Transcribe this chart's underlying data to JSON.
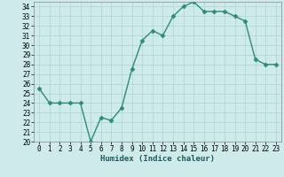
{
  "title": "",
  "xlabel": "Humidex (Indice chaleur)",
  "x": [
    0,
    1,
    2,
    3,
    4,
    5,
    6,
    7,
    8,
    9,
    10,
    11,
    12,
    13,
    14,
    15,
    16,
    17,
    18,
    19,
    20,
    21,
    22,
    23
  ],
  "y": [
    25.5,
    24.0,
    24.0,
    24.0,
    24.0,
    20.0,
    22.5,
    22.2,
    23.5,
    27.5,
    30.5,
    31.5,
    31.0,
    33.0,
    34.0,
    34.5,
    33.5,
    33.5,
    33.5,
    33.0,
    32.5,
    28.5,
    28.0,
    28.0
  ],
  "line_color": "#2e8b7a",
  "marker": "D",
  "marker_size": 2.5,
  "bg_color": "#ceeaea",
  "grid_color": "#b0d8d8",
  "ylim": [
    20,
    34.5
  ],
  "xlim": [
    -0.5,
    23.5
  ],
  "yticks": [
    20,
    21,
    22,
    23,
    24,
    25,
    26,
    27,
    28,
    29,
    30,
    31,
    32,
    33,
    34
  ],
  "xticks": [
    0,
    1,
    2,
    3,
    4,
    5,
    6,
    7,
    8,
    9,
    10,
    11,
    12,
    13,
    14,
    15,
    16,
    17,
    18,
    19,
    20,
    21,
    22,
    23
  ],
  "tick_fontsize": 5.5,
  "xlabel_fontsize": 6.5,
  "linewidth": 1.0
}
